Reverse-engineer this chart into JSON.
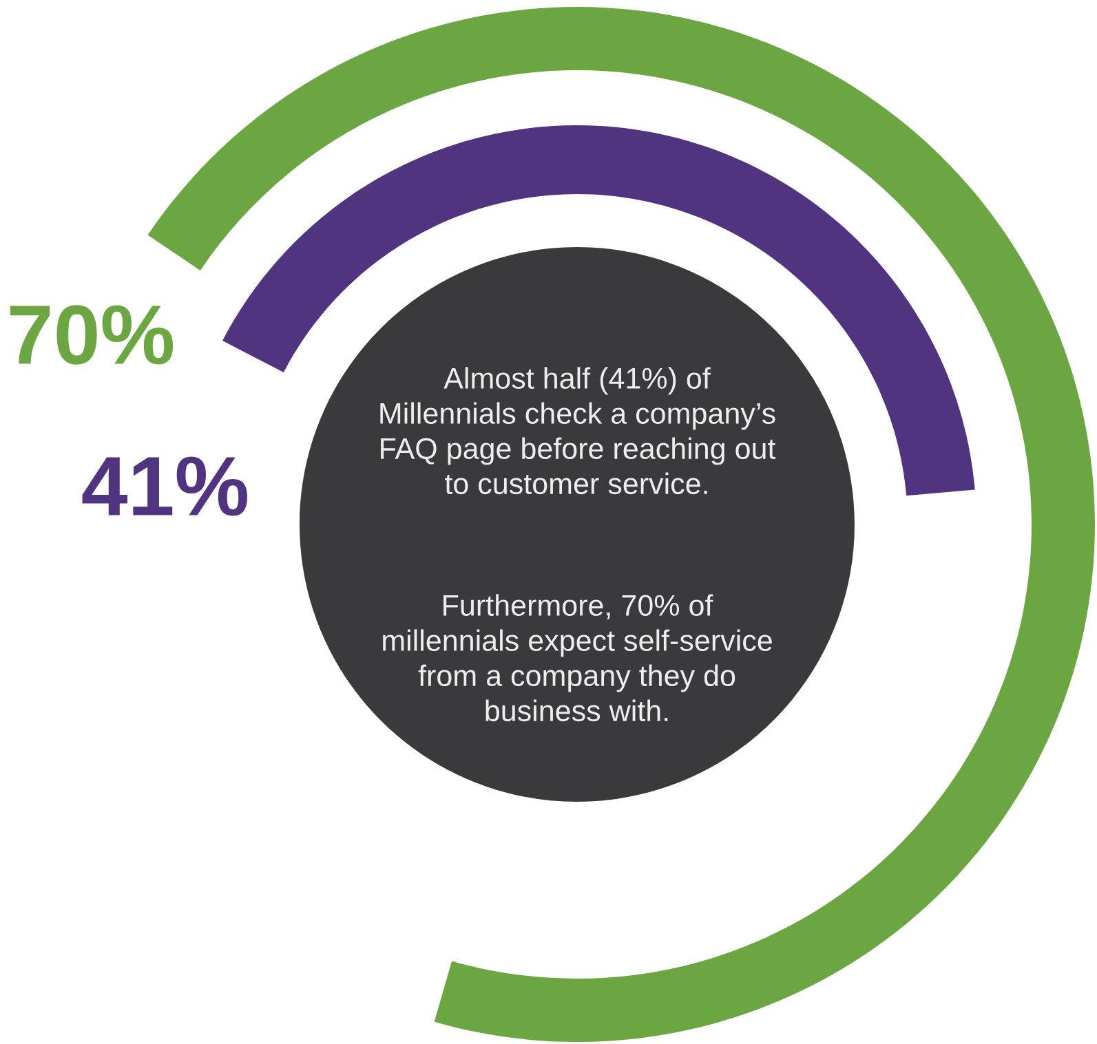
{
  "chart_data": {
    "type": "other",
    "categories": [
      null,
      null
    ],
    "values": [
      70,
      41
    ],
    "colors": [
      "#6ca642",
      "#51347f"
    ],
    "value_labels": [
      "70%",
      "41%"
    ],
    "annotations": [
      "Almost half (41%) of\nMillennials check a company’s\nFAQ page before reaching out\nto customer service.",
      "Furthermore, 70% of\nmillennials expect self-service\nfrom a company they do\nbusiness with."
    ]
  }
}
